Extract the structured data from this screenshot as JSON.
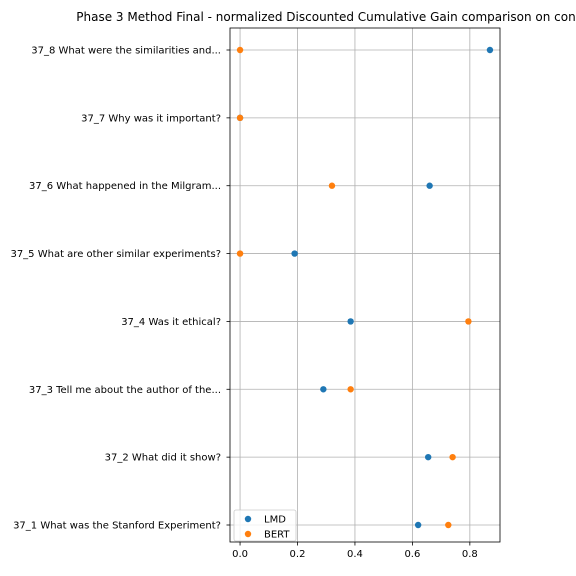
{
  "chart_data": {
    "type": "scatter",
    "title": "Phase 3 Method Final - normalized Discounted Cumulative Gain comparison on con",
    "categories": [
      "37_1 What was the Stanford Experiment?",
      "37_2 What did it show?",
      "37_3 Tell me about the author of the...",
      "37_4 Was it ethical?",
      "37_5 What are other similar experiments?",
      "37_6 What happened in the Milgram...",
      "37_7 Why was it important?",
      "37_8 What were the similarities and..."
    ],
    "series": [
      {
        "name": "LMD",
        "color": "#1f77b4",
        "values": [
          0.62,
          0.655,
          0.29,
          0.385,
          0.19,
          0.66,
          0.0,
          0.87
        ]
      },
      {
        "name": "BERT",
        "color": "#ff7f0e",
        "values": [
          0.725,
          0.74,
          0.385,
          0.795,
          0.0,
          0.32,
          0.0,
          0.0
        ]
      }
    ],
    "xlabel": "",
    "ylabel": "",
    "xlim": [
      -0.035,
      0.905
    ],
    "xticks": [
      "0.0",
      "0.2",
      "0.4",
      "0.6",
      "0.8"
    ],
    "grid": true,
    "legend_position": "lower-left"
  }
}
